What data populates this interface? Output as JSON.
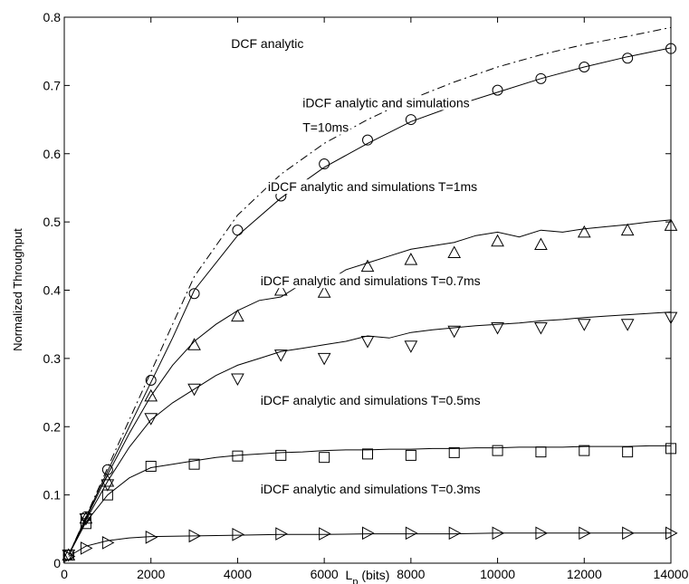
{
  "chart_data": {
    "type": "line",
    "title": "",
    "xlabel": "L",
    "xlabel_sub": "p",
    "xlabel_unit": " (bits)",
    "ylabel": "Normalized Throughput",
    "xlim": [
      0,
      14000
    ],
    "ylim": [
      0,
      0.8
    ],
    "xticks": [
      0,
      2000,
      4000,
      6000,
      8000,
      10000,
      12000,
      14000
    ],
    "xtick_labels": [
      "0",
      "2000",
      "4000",
      "6000",
      "8000",
      "10000",
      "12000",
      "14000"
    ],
    "yticks": [
      0,
      0.1,
      0.2,
      0.3,
      0.4,
      0.5,
      0.6,
      0.7,
      0.8
    ],
    "ytick_labels": [
      "0",
      "0.1",
      "0.2",
      "0.3",
      "0.4",
      "0.5",
      "0.6",
      "0.7",
      "0.8"
    ],
    "grid": false,
    "legend": "none",
    "series": [
      {
        "style": "dashdot",
        "marker": "none",
        "x": [
          100,
          500,
          1000,
          1500,
          2000,
          2500,
          3000,
          4000,
          5000,
          6000,
          7000,
          8000,
          9000,
          10000,
          11000,
          12000,
          13000,
          14000
        ],
        "y": [
          0.012,
          0.068,
          0.14,
          0.21,
          0.28,
          0.35,
          0.42,
          0.51,
          0.57,
          0.615,
          0.65,
          0.68,
          0.705,
          0.727,
          0.745,
          0.76,
          0.772,
          0.785
        ]
      },
      {
        "style": "solid",
        "marker": "none",
        "x": [
          100,
          500,
          1000,
          1500,
          2000,
          2500,
          3000,
          4000,
          5000,
          6000,
          7000,
          8000,
          9000,
          10000,
          11000,
          12000,
          13000,
          14000
        ],
        "y": [
          0.012,
          0.067,
          0.135,
          0.2,
          0.265,
          0.33,
          0.4,
          0.48,
          0.535,
          0.58,
          0.615,
          0.647,
          0.67,
          0.69,
          0.71,
          0.727,
          0.742,
          0.755
        ]
      },
      {
        "style": "none",
        "marker": "circle",
        "x": [
          100,
          500,
          1000,
          2000,
          3000,
          4000,
          5000,
          6000,
          7000,
          8000,
          9000,
          10000,
          11000,
          12000,
          13000,
          14000
        ],
        "y": [
          0.012,
          0.068,
          0.137,
          0.268,
          0.395,
          0.488,
          0.538,
          0.585,
          0.62,
          0.65,
          0.673,
          0.693,
          0.71,
          0.727,
          0.74,
          0.754
        ]
      },
      {
        "style": "solid",
        "marker": "none",
        "x": [
          100,
          500,
          1000,
          1500,
          2000,
          2500,
          3000,
          3500,
          4000,
          4500,
          5000,
          5500,
          6000,
          6500,
          7000,
          7500,
          8000,
          8500,
          9000,
          9500,
          10000,
          10500,
          11000,
          11500,
          12000,
          12500,
          13000,
          13500,
          14000
        ],
        "y": [
          0.012,
          0.065,
          0.13,
          0.19,
          0.245,
          0.29,
          0.325,
          0.35,
          0.37,
          0.385,
          0.39,
          0.41,
          0.41,
          0.43,
          0.44,
          0.45,
          0.46,
          0.465,
          0.47,
          0.48,
          0.485,
          0.478,
          0.488,
          0.485,
          0.49,
          0.493,
          0.496,
          0.5,
          0.503
        ]
      },
      {
        "style": "none",
        "marker": "triangle-up",
        "x": [
          100,
          500,
          1000,
          2000,
          3000,
          4000,
          5000,
          6000,
          7000,
          8000,
          9000,
          10000,
          11000,
          12000,
          13000,
          14000
        ],
        "y": [
          0.012,
          0.066,
          0.12,
          0.245,
          0.32,
          0.362,
          0.4,
          0.397,
          0.435,
          0.445,
          0.455,
          0.472,
          0.467,
          0.485,
          0.488,
          0.495
        ]
      },
      {
        "style": "solid",
        "marker": "none",
        "x": [
          100,
          500,
          1000,
          1500,
          2000,
          2500,
          3000,
          3500,
          4000,
          4500,
          5000,
          5500,
          6000,
          6500,
          7000,
          7500,
          8000,
          8500,
          9000,
          9500,
          10000,
          10500,
          11000,
          11500,
          12000,
          12500,
          13000,
          13500,
          14000
        ],
        "y": [
          0.012,
          0.063,
          0.12,
          0.17,
          0.21,
          0.235,
          0.255,
          0.275,
          0.29,
          0.3,
          0.31,
          0.315,
          0.32,
          0.325,
          0.333,
          0.33,
          0.338,
          0.342,
          0.345,
          0.348,
          0.35,
          0.352,
          0.355,
          0.357,
          0.36,
          0.362,
          0.364,
          0.366,
          0.368
        ]
      },
      {
        "style": "none",
        "marker": "triangle-down",
        "x": [
          100,
          500,
          1000,
          2000,
          3000,
          4000,
          5000,
          6000,
          7000,
          8000,
          9000,
          10000,
          11000,
          12000,
          13000,
          14000
        ],
        "y": [
          0.012,
          0.065,
          0.115,
          0.212,
          0.255,
          0.27,
          0.305,
          0.3,
          0.325,
          0.318,
          0.34,
          0.345,
          0.345,
          0.35,
          0.35,
          0.36
        ]
      },
      {
        "style": "solid",
        "marker": "none",
        "x": [
          100,
          500,
          1000,
          1500,
          2000,
          2500,
          3000,
          3500,
          4000,
          4500,
          5000,
          5500,
          6000,
          6500,
          7000,
          7500,
          8000,
          8500,
          9000,
          9500,
          10000,
          10500,
          11000,
          11500,
          12000,
          12500,
          13000,
          13500,
          14000
        ],
        "y": [
          0.012,
          0.06,
          0.1,
          0.125,
          0.14,
          0.145,
          0.15,
          0.155,
          0.158,
          0.16,
          0.162,
          0.163,
          0.165,
          0.166,
          0.166,
          0.167,
          0.167,
          0.168,
          0.168,
          0.169,
          0.169,
          0.17,
          0.17,
          0.17,
          0.171,
          0.171,
          0.171,
          0.172,
          0.172
        ]
      },
      {
        "style": "none",
        "marker": "square",
        "x": [
          100,
          500,
          1000,
          2000,
          3000,
          4000,
          5000,
          6000,
          7000,
          8000,
          9000,
          10000,
          11000,
          12000,
          13000,
          14000
        ],
        "y": [
          0.012,
          0.058,
          0.1,
          0.142,
          0.145,
          0.157,
          0.158,
          0.155,
          0.16,
          0.158,
          0.162,
          0.165,
          0.163,
          0.165,
          0.163,
          0.168
        ]
      },
      {
        "style": "solid",
        "marker": "none",
        "x": [
          100,
          500,
          1000,
          1500,
          2000,
          3000,
          4000,
          5000,
          6000,
          7000,
          8000,
          9000,
          10000,
          11000,
          12000,
          13000,
          14000
        ],
        "y": [
          0.01,
          0.025,
          0.033,
          0.037,
          0.039,
          0.04,
          0.041,
          0.042,
          0.042,
          0.043,
          0.043,
          0.043,
          0.044,
          0.044,
          0.044,
          0.044,
          0.044
        ]
      },
      {
        "style": "none",
        "marker": "triangle-right",
        "x": [
          100,
          500,
          1000,
          2000,
          3000,
          4000,
          5000,
          6000,
          7000,
          8000,
          9000,
          10000,
          11000,
          12000,
          13000,
          14000
        ],
        "y": [
          0.01,
          0.022,
          0.03,
          0.038,
          0.04,
          0.042,
          0.043,
          0.043,
          0.044,
          0.044,
          0.044,
          0.044,
          0.044,
          0.044,
          0.044,
          0.044
        ]
      }
    ],
    "annotations": [
      {
        "text": "DCF analytic",
        "x": 3850,
        "y": 0.755
      },
      {
        "text": "iDCF analytic and simulations",
        "x": 5500,
        "y": 0.668
      },
      {
        "text": "T=10ms",
        "x": 5500,
        "y": 0.632
      },
      {
        "text": "iDCF analytic and simulations T=1ms",
        "x": 4700,
        "y": 0.545
      },
      {
        "text": "iDCF analytic and simulations T=0.7ms",
        "x": 4530,
        "y": 0.407
      },
      {
        "text": "iDCF analytic and simulations T=0.5ms",
        "x": 4530,
        "y": 0.232
      },
      {
        "text": "iDCF analytic and simulations T=0.3ms",
        "x": 4530,
        "y": 0.102
      }
    ]
  }
}
